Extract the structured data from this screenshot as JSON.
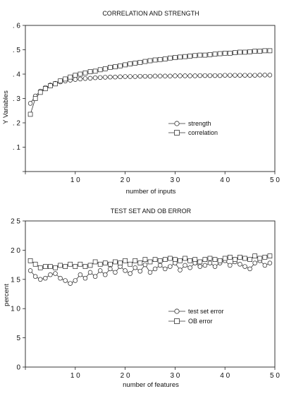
{
  "chart_data": [
    {
      "type": "line",
      "title": "CORRELATION AND STRENGTH",
      "xlabel": "number of inputs",
      "ylabel": "Y Variables",
      "xlim": [
        0,
        50
      ],
      "ylim": [
        0,
        0.6
      ],
      "xticks": [
        0,
        10,
        20,
        30,
        40,
        50
      ],
      "xtick_labels": [
        "",
        "1 0",
        "2 0",
        "3 0",
        "4 0",
        "5 0"
      ],
      "yticks": [
        0,
        0.1,
        0.2,
        0.3,
        0.4,
        0.5,
        0.6
      ],
      "ytick_labels": [
        "",
        ". 1",
        ". 2",
        ". 3",
        ". 4",
        ". 5",
        ". 6"
      ],
      "grid": false,
      "legend_position": "center-right",
      "x": [
        1,
        2,
        3,
        4,
        5,
        6,
        7,
        8,
        9,
        10,
        11,
        12,
        13,
        14,
        15,
        16,
        17,
        18,
        19,
        20,
        21,
        22,
        23,
        24,
        25,
        26,
        27,
        28,
        29,
        30,
        31,
        32,
        33,
        34,
        35,
        36,
        37,
        38,
        39,
        40,
        41,
        42,
        43,
        44,
        45,
        46,
        47,
        48,
        49
      ],
      "series": [
        {
          "name": "strength",
          "marker": "circle",
          "values": [
            0.28,
            0.31,
            0.33,
            0.345,
            0.355,
            0.362,
            0.368,
            0.372,
            0.375,
            0.378,
            0.38,
            0.382,
            0.383,
            0.385,
            0.386,
            0.387,
            0.388,
            0.388,
            0.389,
            0.39,
            0.39,
            0.39,
            0.391,
            0.391,
            0.391,
            0.392,
            0.392,
            0.392,
            0.392,
            0.393,
            0.393,
            0.393,
            0.393,
            0.393,
            0.394,
            0.394,
            0.394,
            0.394,
            0.394,
            0.395,
            0.395,
            0.395,
            0.395,
            0.395,
            0.395,
            0.395,
            0.396,
            0.396,
            0.396
          ]
        },
        {
          "name": "correlation",
          "marker": "square",
          "values": [
            0.235,
            0.3,
            0.325,
            0.34,
            0.352,
            0.36,
            0.372,
            0.38,
            0.388,
            0.395,
            0.4,
            0.405,
            0.41,
            0.412,
            0.418,
            0.422,
            0.428,
            0.43,
            0.434,
            0.438,
            0.442,
            0.445,
            0.448,
            0.452,
            0.455,
            0.458,
            0.46,
            0.462,
            0.466,
            0.468,
            0.47,
            0.472,
            0.474,
            0.476,
            0.478,
            0.478,
            0.48,
            0.482,
            0.484,
            0.486,
            0.486,
            0.488,
            0.49,
            0.49,
            0.492,
            0.494,
            0.494,
            0.496,
            0.496
          ]
        }
      ]
    },
    {
      "type": "line",
      "title": "TEST SET AND OB ERROR",
      "xlabel": "number of features",
      "ylabel": "percent",
      "xlim": [
        0,
        50
      ],
      "ylim": [
        0,
        25
      ],
      "xticks": [
        0,
        10,
        20,
        30,
        40,
        50
      ],
      "xtick_labels": [
        "",
        "1 0",
        "2 0",
        "3 0",
        "4 0",
        "5 0"
      ],
      "yticks": [
        0,
        5,
        10,
        15,
        20,
        25
      ],
      "ytick_labels": [
        "0",
        "5",
        "1 0",
        "1 5",
        "2 0",
        "2 5"
      ],
      "grid": false,
      "legend_position": "center-right",
      "x": [
        1,
        2,
        3,
        4,
        5,
        6,
        7,
        8,
        9,
        10,
        11,
        12,
        13,
        14,
        15,
        16,
        17,
        18,
        19,
        20,
        21,
        22,
        23,
        24,
        25,
        26,
        27,
        28,
        29,
        30,
        31,
        32,
        33,
        34,
        35,
        36,
        37,
        38,
        39,
        40,
        41,
        42,
        43,
        44,
        45,
        46,
        47,
        48,
        49
      ],
      "series": [
        {
          "name": "test set error",
          "marker": "circle",
          "values": [
            16.5,
            15.5,
            15.0,
            15.2,
            15.8,
            16.0,
            15.2,
            14.8,
            14.3,
            14.8,
            15.8,
            15.2,
            16.2,
            15.5,
            16.5,
            15.8,
            16.8,
            16.2,
            17.2,
            16.5,
            16.0,
            17.0,
            16.4,
            17.5,
            16.2,
            16.8,
            17.4,
            16.8,
            17.2,
            17.8,
            16.6,
            17.4,
            17.0,
            17.8,
            17.2,
            17.4,
            17.8,
            17.2,
            17.8,
            18.2,
            17.4,
            18.0,
            17.6,
            17.2,
            16.8,
            17.8,
            18.2,
            17.4,
            17.8
          ]
        },
        {
          "name": "OB error",
          "marker": "square",
          "values": [
            18.2,
            17.6,
            17.0,
            17.2,
            17.2,
            17.0,
            17.4,
            17.2,
            17.6,
            17.2,
            17.6,
            17.2,
            17.4,
            18.0,
            17.6,
            17.8,
            17.6,
            18.0,
            17.8,
            18.2,
            17.6,
            18.2,
            17.8,
            18.4,
            18.0,
            18.4,
            18.2,
            18.4,
            18.6,
            18.4,
            18.2,
            18.6,
            18.2,
            18.4,
            18.0,
            18.4,
            18.6,
            18.4,
            18.2,
            18.6,
            18.8,
            18.4,
            18.8,
            18.6,
            18.4,
            19.0,
            18.6,
            18.8,
            19.0
          ]
        }
      ]
    }
  ]
}
